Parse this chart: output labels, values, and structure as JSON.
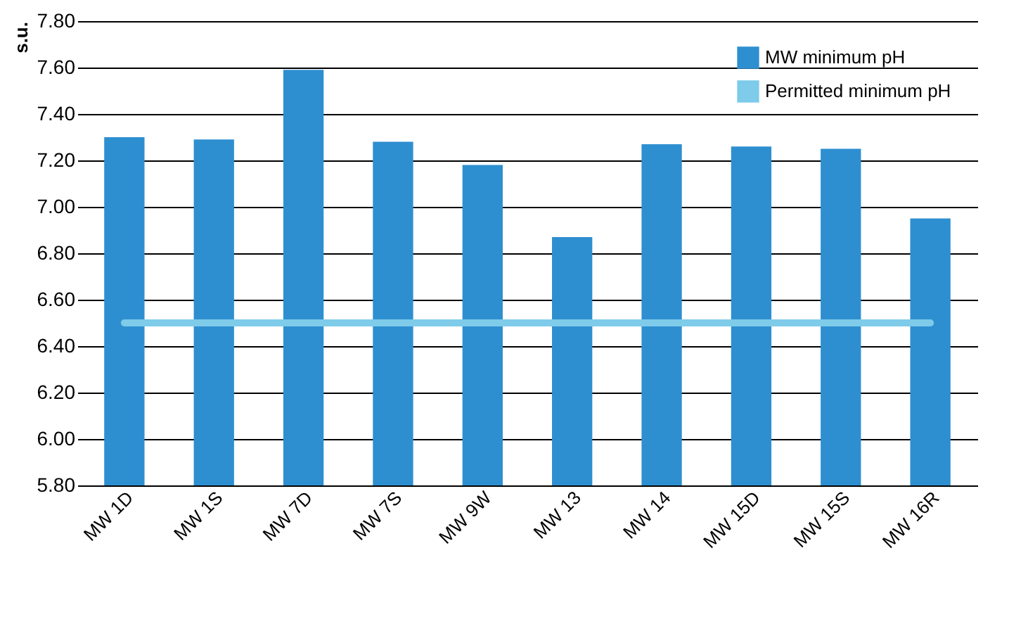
{
  "chart_data": {
    "type": "bar",
    "ylabel": "s.u.",
    "categories": [
      "MW 1D",
      "MW 1S",
      "MW 7D",
      "MW 7S",
      "MW 9W",
      "MW 13",
      "MW 14",
      "MW 15D",
      "MW 15S",
      "MW 16R"
    ],
    "series": [
      {
        "name": "MW minimum pH",
        "color": "#2e8fd0",
        "values": [
          7.3,
          7.29,
          7.59,
          7.28,
          7.18,
          6.87,
          7.27,
          7.26,
          7.25,
          6.95
        ]
      },
      {
        "name": "Permitted minimum pH",
        "type": "line",
        "color": "#7ecbea",
        "values": [
          6.5,
          6.5,
          6.5,
          6.5,
          6.5,
          6.5,
          6.5,
          6.5,
          6.5,
          6.5
        ]
      }
    ],
    "ylim": [
      5.8,
      7.8
    ],
    "yticks": [
      {
        "value": 5.8,
        "label": "5.80"
      },
      {
        "value": 6.0,
        "label": "6.00"
      },
      {
        "value": 6.2,
        "label": "6.20"
      },
      {
        "value": 6.4,
        "label": "6.40"
      },
      {
        "value": 6.6,
        "label": "6.60"
      },
      {
        "value": 6.8,
        "label": "6.80"
      },
      {
        "value": 7.0,
        "label": "7.00"
      },
      {
        "value": 7.2,
        "label": "7.20"
      },
      {
        "value": 7.4,
        "label": "7.40"
      },
      {
        "value": 7.6,
        "label": "7.60"
      },
      {
        "value": 7.8,
        "label": "7.80"
      }
    ],
    "grid": "y",
    "legend": "top right"
  }
}
